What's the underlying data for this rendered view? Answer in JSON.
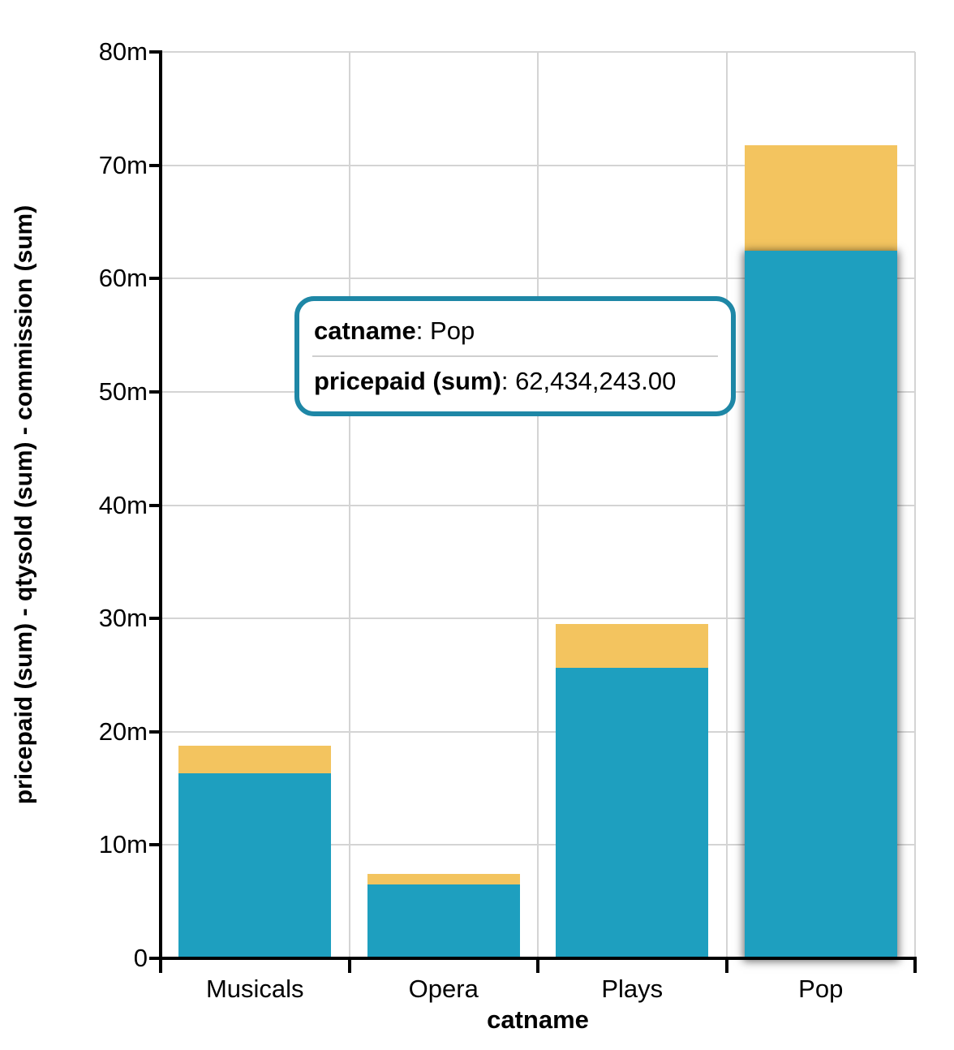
{
  "chart_data": {
    "type": "bar",
    "stacked": true,
    "title": "",
    "xlabel": "catname",
    "ylabel": "pricepaid (sum) - qtysold (sum) - commission (sum)",
    "categories": [
      "Musicals",
      "Opera",
      "Plays",
      "Pop"
    ],
    "series": [
      {
        "name": "pricepaid (sum)",
        "color": "#1e9fbf",
        "values": [
          16350000,
          6500000,
          25650000,
          62434243
        ]
      },
      {
        "name": "commission (sum)",
        "color": "#f3c45f",
        "values": [
          2450000,
          980000,
          3850000,
          9365136
        ]
      }
    ],
    "ylim": [
      0,
      80000000
    ],
    "ytick_values": [
      0,
      10000000,
      20000000,
      30000000,
      40000000,
      50000000,
      60000000,
      70000000,
      80000000
    ],
    "ytick_labels": [
      "0",
      "10m",
      "20m",
      "30m",
      "40m",
      "50m",
      "60m",
      "70m",
      "80m"
    ],
    "grid": true,
    "legend": "none",
    "highlight": {
      "category": "Pop",
      "series": "pricepaid (sum)"
    }
  },
  "tooltip": {
    "separator": ": ",
    "border_color": "#1e87a6",
    "rows": [
      {
        "label": "catname",
        "value": "Pop"
      },
      {
        "label": "pricepaid (sum)",
        "value": "62,434,243.00"
      }
    ]
  }
}
